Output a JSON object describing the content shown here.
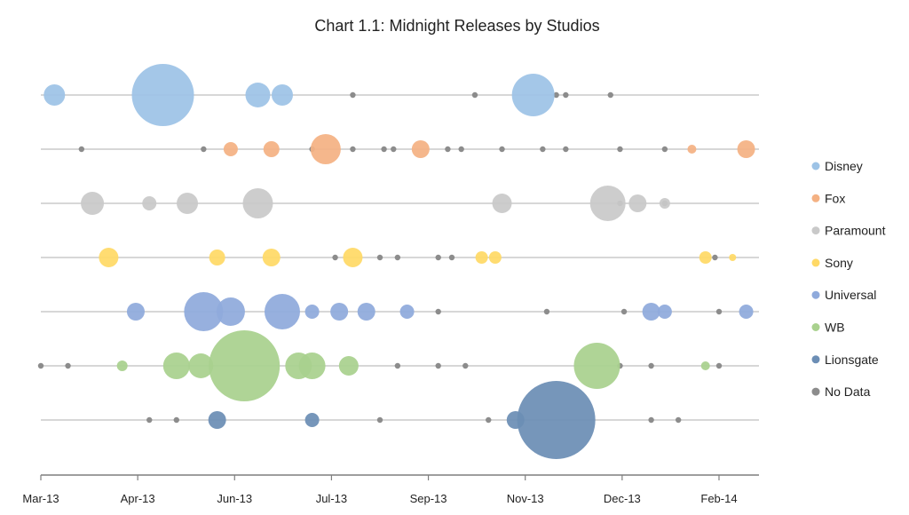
{
  "chart_data": {
    "type": "scatter",
    "subtype": "bubble",
    "title": "Chart 1.1: Midnight Releases by Studios",
    "xlabel": "",
    "ylabel": "",
    "x_tick_labels": [
      "Mar-13",
      "Apr-13",
      "Jun-13",
      "Jul-13",
      "Sep-13",
      "Nov-13",
      "Dec-13",
      "Feb-14"
    ],
    "x_range": [
      0,
      53
    ],
    "grid": "horizontal-per-series",
    "legend_position": "right",
    "series": [
      {
        "name": "Disney",
        "color": "#9DC3E6",
        "points": [
          {
            "x": 1.0,
            "size": 12
          },
          {
            "x": 9.0,
            "size": 35
          },
          {
            "x": 16.0,
            "size": 14
          },
          {
            "x": 17.8,
            "size": 12
          },
          {
            "x": 36.3,
            "size": 24
          }
        ]
      },
      {
        "name": "Fox",
        "color": "#F4B183",
        "points": [
          {
            "x": 14.0,
            "size": 8
          },
          {
            "x": 17.0,
            "size": 9
          },
          {
            "x": 21.0,
            "size": 17
          },
          {
            "x": 28.0,
            "size": 10
          },
          {
            "x": 48.0,
            "size": 5
          },
          {
            "x": 52.0,
            "size": 10
          }
        ]
      },
      {
        "name": "Paramount",
        "color": "#C9C9C9",
        "points": [
          {
            "x": 3.8,
            "size": 13
          },
          {
            "x": 8.0,
            "size": 8
          },
          {
            "x": 10.8,
            "size": 12
          },
          {
            "x": 16.0,
            "size": 17
          },
          {
            "x": 34.0,
            "size": 11
          },
          {
            "x": 41.8,
            "size": 20
          },
          {
            "x": 44.0,
            "size": 10
          },
          {
            "x": 46.0,
            "size": 6
          }
        ]
      },
      {
        "name": "Sony",
        "color": "#FFD966",
        "points": [
          {
            "x": 5.0,
            "size": 11
          },
          {
            "x": 13.0,
            "size": 9
          },
          {
            "x": 17.0,
            "size": 10
          },
          {
            "x": 23.0,
            "size": 11
          },
          {
            "x": 32.5,
            "size": 7
          },
          {
            "x": 33.5,
            "size": 7
          },
          {
            "x": 49.0,
            "size": 7
          },
          {
            "x": 51.0,
            "size": 4
          }
        ]
      },
      {
        "name": "Universal",
        "color": "#8FAADC",
        "points": [
          {
            "x": 7.0,
            "size": 10
          },
          {
            "x": 12.0,
            "size": 22
          },
          {
            "x": 14.0,
            "size": 16
          },
          {
            "x": 17.8,
            "size": 20
          },
          {
            "x": 20.0,
            "size": 8
          },
          {
            "x": 22.0,
            "size": 10
          },
          {
            "x": 24.0,
            "size": 10
          },
          {
            "x": 27.0,
            "size": 8
          },
          {
            "x": 45.0,
            "size": 10
          },
          {
            "x": 46.0,
            "size": 8
          },
          {
            "x": 52.0,
            "size": 8
          }
        ]
      },
      {
        "name": "WB",
        "color": "#A9D18E",
        "points": [
          {
            "x": 6.0,
            "size": 6
          },
          {
            "x": 10.0,
            "size": 15
          },
          {
            "x": 11.8,
            "size": 14
          },
          {
            "x": 15.0,
            "size": 40
          },
          {
            "x": 19.0,
            "size": 15
          },
          {
            "x": 20.0,
            "size": 15
          },
          {
            "x": 22.7,
            "size": 11
          },
          {
            "x": 41.0,
            "size": 26
          },
          {
            "x": 49.0,
            "size": 5
          }
        ]
      },
      {
        "name": "Lionsgate",
        "color": "#6C8EB5",
        "points": [
          {
            "x": 13.0,
            "size": 10
          },
          {
            "x": 20.0,
            "size": 8
          },
          {
            "x": 35.0,
            "size": 10
          },
          {
            "x": 38.0,
            "size": 44
          }
        ]
      },
      {
        "name": "No Data",
        "color": "#8C8C8C",
        "points": [
          {
            "row": 0,
            "x": 23.0
          },
          {
            "row": 0,
            "x": 32.0
          },
          {
            "row": 0,
            "x": 38.0
          },
          {
            "row": 0,
            "x": 38.7
          },
          {
            "row": 0,
            "x": 42.0
          },
          {
            "row": 1,
            "x": 3.0
          },
          {
            "row": 1,
            "x": 12.0
          },
          {
            "row": 1,
            "x": 20.0
          },
          {
            "row": 1,
            "x": 23.0
          },
          {
            "row": 1,
            "x": 25.3
          },
          {
            "row": 1,
            "x": 26.0
          },
          {
            "row": 1,
            "x": 30.0
          },
          {
            "row": 1,
            "x": 31.0
          },
          {
            "row": 1,
            "x": 34.0
          },
          {
            "row": 1,
            "x": 37.0
          },
          {
            "row": 1,
            "x": 38.7
          },
          {
            "row": 1,
            "x": 42.7
          },
          {
            "row": 1,
            "x": 46.0
          },
          {
            "row": 2,
            "x": 42.7
          },
          {
            "row": 2,
            "x": 46.0
          },
          {
            "row": 3,
            "x": 21.7
          },
          {
            "row": 3,
            "x": 25.0
          },
          {
            "row": 3,
            "x": 26.3
          },
          {
            "row": 3,
            "x": 29.3
          },
          {
            "row": 3,
            "x": 30.3
          },
          {
            "row": 3,
            "x": 49.7
          },
          {
            "row": 4,
            "x": 29.3
          },
          {
            "row": 4,
            "x": 37.3
          },
          {
            "row": 4,
            "x": 43.0
          },
          {
            "row": 4,
            "x": 50.0
          },
          {
            "row": 5,
            "x": 0.0
          },
          {
            "row": 5,
            "x": 2.0
          },
          {
            "row": 5,
            "x": 26.3
          },
          {
            "row": 5,
            "x": 29.3
          },
          {
            "row": 5,
            "x": 31.3
          },
          {
            "row": 5,
            "x": 42.7
          },
          {
            "row": 5,
            "x": 45.0
          },
          {
            "row": 5,
            "x": 50.0
          },
          {
            "row": 6,
            "x": 8.0
          },
          {
            "row": 6,
            "x": 10.0
          },
          {
            "row": 6,
            "x": 25.0
          },
          {
            "row": 6,
            "x": 33.0
          },
          {
            "row": 6,
            "x": 45.0
          },
          {
            "row": 6,
            "x": 47.0
          }
        ]
      }
    ]
  }
}
